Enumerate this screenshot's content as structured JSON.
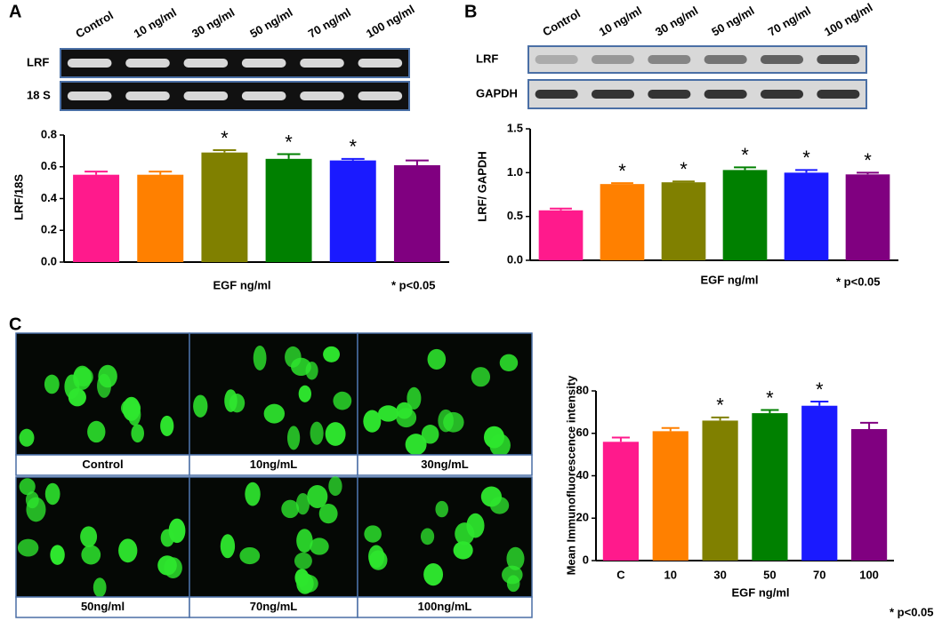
{
  "panels": [
    "A",
    "B",
    "C"
  ],
  "gels": [
    {
      "lanes": [
        "Control",
        "10 ng/ml",
        "30 ng/ml",
        "50 ng/ml",
        "70 ng/ml",
        "100 ng/ml"
      ],
      "rows": [
        "LRF",
        "18 S"
      ]
    },
    {
      "lanes": [
        "Control",
        "10 ng/ml",
        "30 ng/ml",
        "50 ng/ml",
        "70 ng/ml",
        "100 ng/ml"
      ],
      "rows": [
        "LRF",
        "GAPDH"
      ]
    }
  ],
  "images": {
    "labels": [
      "Control",
      "10ng/mL",
      "30ng/mL",
      "50ng/ml",
      "70ng/mL",
      "100ng/mL"
    ]
  },
  "chart_data": [
    {
      "type": "bar",
      "categories": [
        null,
        null,
        null,
        null,
        null,
        null
      ],
      "values": [
        0.55,
        0.55,
        0.69,
        0.65,
        0.64,
        0.61
      ],
      "errors": [
        0.02,
        0.02,
        0.015,
        0.03,
        0.01,
        0.03
      ],
      "colors": [
        "#ff1a8c",
        "#ff8000",
        "#808000",
        "#008000",
        "#1a1aff",
        "#800080"
      ],
      "significance": [
        null,
        null,
        "*",
        "*",
        "*",
        null
      ],
      "ylim": [
        0,
        0.8
      ],
      "yticks": [
        {
          "value": 0,
          "label": "0.0"
        },
        0.2,
        0.4,
        0.6,
        0.8
      ],
      "x_label": "EGF ng/ml",
      "y_label": "LRF/18S",
      "note": "* p<0.05"
    },
    {
      "type": "bar",
      "categories": [
        null,
        null,
        null,
        null,
        null,
        null
      ],
      "values": [
        0.57,
        0.87,
        0.89,
        1.03,
        1.0,
        0.98
      ],
      "errors": [
        0.02,
        0.01,
        0.01,
        0.03,
        0.03,
        0.02
      ],
      "colors": [
        "#ff1a8c",
        "#ff8000",
        "#808000",
        "#008000",
        "#1a1aff",
        "#800080"
      ],
      "significance": [
        null,
        "*",
        "*",
        "*",
        "*",
        "*"
      ],
      "ylim": [
        0,
        1.5
      ],
      "yticks": [
        {
          "value": 0,
          "label": "0.0"
        },
        0.5,
        {
          "value": 1,
          "label": "1.0"
        },
        1.5
      ],
      "x_label": "EGF ng/ml",
      "y_label": "LRF/ GAPDH",
      "note": "* p<0.05"
    },
    {
      "type": "bar",
      "categories": [
        "C",
        "10",
        "30",
        "50",
        "70",
        "100"
      ],
      "values": [
        56,
        61,
        66,
        69.5,
        73,
        62
      ],
      "errors": [
        2,
        1.5,
        1.5,
        1.5,
        2,
        3
      ],
      "colors": [
        "#ff1a8c",
        "#ff8000",
        "#808000",
        "#008000",
        "#1a1aff",
        "#800080"
      ],
      "significance": [
        null,
        null,
        "*",
        "*",
        "*",
        null
      ],
      "ylim": [
        0,
        80
      ],
      "yticks": [
        0,
        20,
        40,
        60,
        80
      ],
      "x_label": "EGF ng/ml",
      "y_label": "Mean Immunofluorescence intensity",
      "note": "* p<0.05"
    }
  ]
}
